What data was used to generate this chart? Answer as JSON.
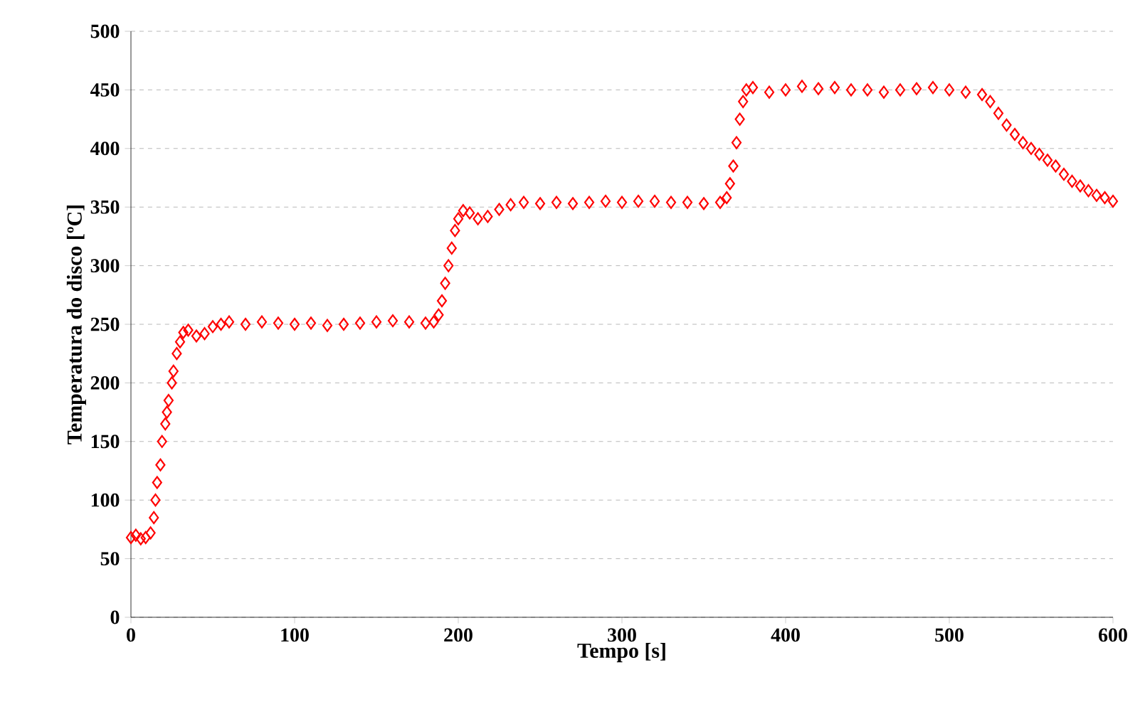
{
  "chart_data": {
    "type": "scatter",
    "xlabel": "Tempo [s]",
    "ylabel": "Temperatura do disco [ºC]",
    "xlim": [
      0,
      600
    ],
    "ylim": [
      0,
      500
    ],
    "xticks": [
      0,
      100,
      200,
      300,
      400,
      500,
      600
    ],
    "yticks": [
      0,
      50,
      100,
      150,
      200,
      250,
      300,
      350,
      400,
      450,
      500
    ],
    "grid": "y",
    "marker": "diamond",
    "series": [
      {
        "color": "#ff0000",
        "x": [
          0,
          3,
          6,
          9,
          12,
          14,
          15,
          16,
          18,
          19,
          21,
          22,
          23,
          25,
          26,
          28,
          30,
          32,
          35,
          40,
          45,
          50,
          55,
          60,
          70,
          80,
          90,
          100,
          110,
          120,
          130,
          140,
          150,
          160,
          170,
          180,
          185,
          188,
          190,
          192,
          194,
          196,
          198,
          200,
          203,
          207,
          212,
          218,
          225,
          232,
          240,
          250,
          260,
          270,
          280,
          290,
          300,
          310,
          320,
          330,
          340,
          350,
          360,
          364,
          366,
          368,
          370,
          372,
          374,
          376,
          380,
          390,
          400,
          410,
          420,
          430,
          440,
          450,
          460,
          470,
          480,
          490,
          500,
          510,
          520,
          525,
          530,
          535,
          540,
          545,
          550,
          555,
          560,
          565,
          570,
          575,
          580,
          585,
          590,
          595,
          600
        ],
        "values": [
          68,
          70,
          67,
          68,
          72,
          85,
          100,
          115,
          130,
          150,
          165,
          175,
          185,
          200,
          210,
          225,
          235,
          243,
          245,
          240,
          242,
          248,
          250,
          252,
          250,
          252,
          251,
          250,
          251,
          249,
          250,
          251,
          252,
          253,
          252,
          251,
          252,
          258,
          270,
          285,
          300,
          315,
          330,
          340,
          347,
          345,
          340,
          342,
          348,
          352,
          354,
          353,
          354,
          353,
          354,
          355,
          354,
          355,
          355,
          354,
          354,
          353,
          354,
          358,
          370,
          385,
          405,
          425,
          440,
          450,
          452,
          448,
          450,
          453,
          451,
          452,
          450,
          450,
          448,
          450,
          451,
          452,
          450,
          448,
          446,
          440,
          430,
          420,
          412,
          405,
          400,
          395,
          390,
          385,
          378,
          372,
          368,
          364,
          360,
          358,
          355
        ]
      }
    ]
  }
}
